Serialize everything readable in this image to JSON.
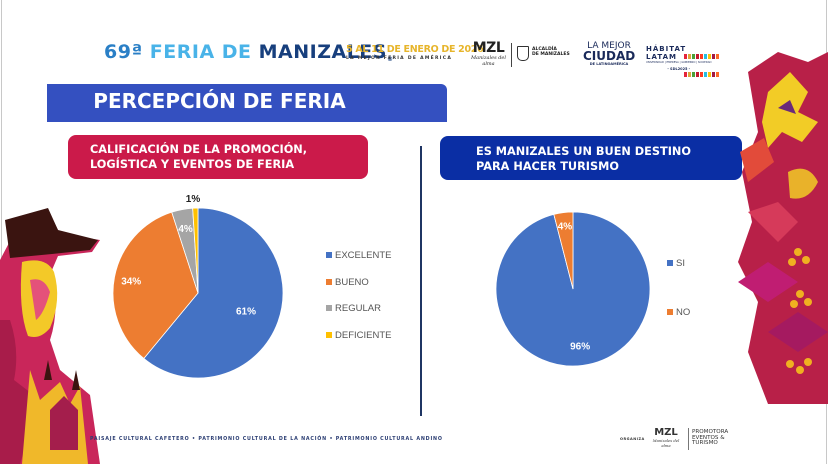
{
  "header": {
    "brand_number": "69ª",
    "brand_feria": "FERIA DE",
    "brand_city": "MANIZALES",
    "brand_reg": "®",
    "dates": "5 AL 11 DE ENERO DE 2026",
    "tagline": "LA MEJOR FERIA DE AMÉRICA",
    "logo_mzl": "MZL",
    "logo_mzl_sub": "Manizales del alma",
    "logo_alcaldia": [
      "ALCALDÍA",
      "DE MANIZALES"
    ],
    "logo_mejor": [
      "LA MEJOR",
      "CIUDAD",
      "DE LATINOAMÉRICA"
    ],
    "logo_habitat": [
      "HÁBITAT",
      "LATAM",
      "UNIVERSIDAD | EMPRESA | GOBIERNO | SOCIEDAD",
      "- SDL2025 -"
    ],
    "habitat_colors": [
      "#e5243b",
      "#dda63a",
      "#4c9f38",
      "#c5192d",
      "#ff3a21",
      "#26bde2",
      "#fcc30b",
      "#a21942",
      "#fd6925"
    ]
  },
  "title": "PERCEPCIÓN DE FERIA",
  "colors": {
    "title_bar": "#3450c0",
    "box_red": "#cb1a4a",
    "box_blue": "#0a2ea4",
    "blue": "#4472c4",
    "orange": "#ed7d31",
    "gray": "#a5a5a5",
    "gold": "#ffc000"
  },
  "left_box": {
    "lines": [
      "CALIFICACIÓN DE LA PROMOCIÓN,",
      "LOGÍSTICA Y EVENTOS DE FERIA"
    ]
  },
  "right_box": {
    "lines": [
      "ES MANIZALES UN BUEN DESTINO",
      "PARA HACER TURISMO"
    ]
  },
  "chart_data": [
    {
      "type": "pie",
      "title": "CALIFICACIÓN DE LA PROMOCIÓN, LOGÍSTICA Y EVENTOS DE FERIA",
      "categories": [
        "EXCELENTE",
        "BUENO",
        "REGULAR",
        "DEFICIENTE"
      ],
      "values": [
        61,
        34,
        4,
        1
      ],
      "labels": [
        "61%",
        "34%",
        "4%",
        "1%"
      ],
      "colors": [
        "#4472c4",
        "#ed7d31",
        "#a5a5a5",
        "#ffc000"
      ],
      "legend_position": "right"
    },
    {
      "type": "pie",
      "title": "ES MANIZALES UN BUEN DESTINO PARA HACER TURISMO",
      "categories": [
        "SI",
        "NO"
      ],
      "values": [
        96,
        4
      ],
      "labels": [
        "96%",
        "4%"
      ],
      "colors": [
        "#4472c4",
        "#ed7d31"
      ],
      "legend_position": "right"
    }
  ],
  "footer": {
    "text": "PAISAJE CULTURAL CAFETERO • PATRIMONIO CULTURAL DE LA NACIÓN • PATRIMONIO  CULTURAL ANDINO",
    "organiza": "ORGANIZA",
    "logo_mzl": "MZL",
    "logo_mzl_sub": "Manizales del alma",
    "promotora": [
      "PROMOTORA",
      "EVENTOS &",
      "TURISMO"
    ]
  }
}
